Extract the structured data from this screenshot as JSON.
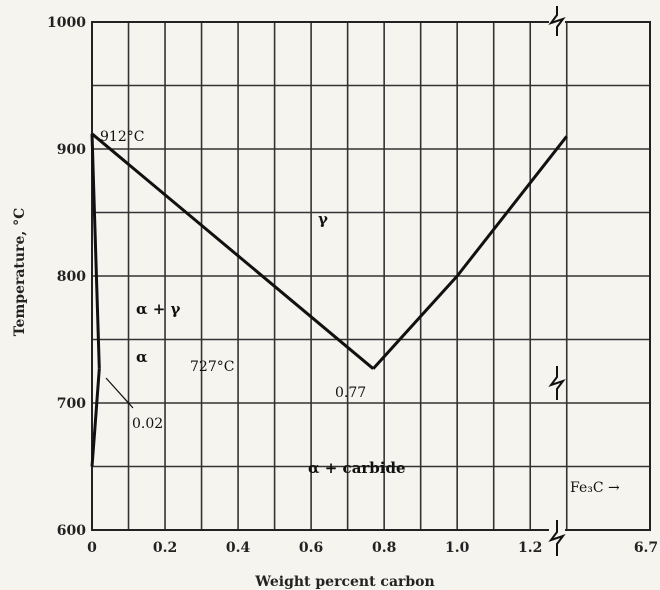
{
  "chart_data": {
    "type": "phase-diagram",
    "xlabel": "Weight percent carbon",
    "ylabel": "Temperature, °C",
    "xlim": [
      0,
      1.35
    ],
    "ylim": [
      600,
      1000
    ],
    "x_ticks": [
      {
        "value": 0,
        "label": "0"
      },
      {
        "value": 0.2,
        "label": "0.2"
      },
      {
        "value": 0.4,
        "label": "0.4"
      },
      {
        "value": 0.6,
        "label": "0.6"
      },
      {
        "value": 0.8,
        "label": "0.8"
      },
      {
        "value": 1.0,
        "label": "1.0"
      },
      {
        "value": 1.2,
        "label": "1.2"
      }
    ],
    "x_end_label": "6.7",
    "y_ticks": [
      {
        "value": 600,
        "label": "600"
      },
      {
        "value": 700,
        "label": "700"
      },
      {
        "value": 800,
        "label": "800"
      },
      {
        "value": 900,
        "label": "900"
      },
      {
        "value": 1000,
        "label": "1000"
      }
    ],
    "grid": true,
    "grid_x_step": 0.1,
    "grid_y_step": 50,
    "boundaries": [
      {
        "name": "A3",
        "points": [
          [
            0,
            912
          ],
          [
            0.77,
            727
          ]
        ]
      },
      {
        "name": "Acm",
        "points": [
          [
            0.77,
            727
          ],
          [
            1.0,
            800
          ],
          [
            1.3,
            910
          ]
        ]
      },
      {
        "name": "alpha-solvus",
        "points": [
          [
            0.02,
            727
          ],
          [
            0.008,
            680
          ],
          [
            0,
            650
          ]
        ]
      },
      {
        "name": "alpha-gamma",
        "points": [
          [
            0,
            912
          ],
          [
            0.02,
            727
          ]
        ]
      }
    ],
    "annotations": [
      {
        "text": "912°C"
      },
      {
        "text": "γ"
      },
      {
        "text": "α + γ"
      },
      {
        "text": "α"
      },
      {
        "text": "727°C"
      },
      {
        "text": "0.77"
      },
      {
        "text": "0.02"
      },
      {
        "text": "α + carbide"
      },
      {
        "text": "Fe₃C →"
      }
    ]
  }
}
